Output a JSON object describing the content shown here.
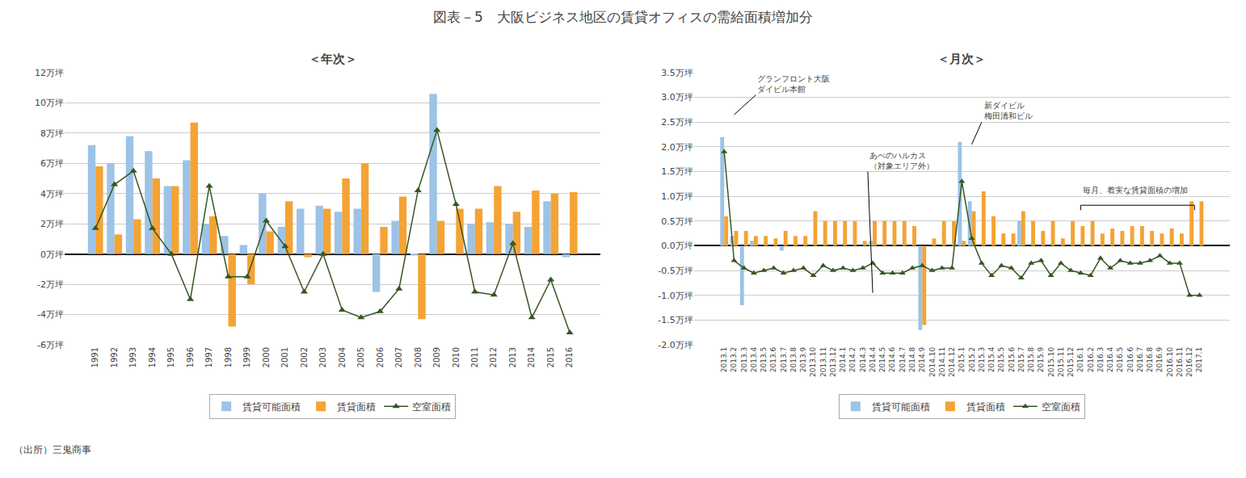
{
  "title": "図表－5　大阪ビジネス地区の賃貸オフィスの需給面積増加分",
  "annotations": [
    "（出所）三鬼商事"
  ],
  "chart_data": [
    {
      "type": "bar",
      "title": "＜年次＞",
      "categories": [
        "1991",
        "1992",
        "1993",
        "1994",
        "1995",
        "1996",
        "1997",
        "1998",
        "1999",
        "2000",
        "2001",
        "2002",
        "2003",
        "2004",
        "2005",
        "2006",
        "2007",
        "2008",
        "2009",
        "2010",
        "2011",
        "2012",
        "2013",
        "2014",
        "2015",
        "2016"
      ],
      "series": [
        {
          "name": "賃貸可能面積",
          "type": "bar",
          "color": "#9DC3E6",
          "values": [
            7.2,
            6.0,
            7.8,
            6.8,
            4.5,
            6.2,
            2.0,
            1.2,
            0.6,
            4.0,
            1.8,
            3.0,
            3.2,
            2.8,
            3.0,
            -2.5,
            2.2,
            -0.1,
            10.6,
            0.0,
            2.0,
            2.1,
            2.0,
            1.8,
            3.5,
            -0.2
          ]
        },
        {
          "name": "賃貸面積",
          "type": "bar",
          "color": "#F4A335",
          "values": [
            5.8,
            1.3,
            2.3,
            5.0,
            4.5,
            8.7,
            2.5,
            -4.8,
            -2.0,
            1.5,
            3.5,
            -0.2,
            3.0,
            5.0,
            6.0,
            1.8,
            3.8,
            -4.3,
            2.2,
            3.0,
            3.0,
            4.5,
            2.8,
            4.2,
            4.0,
            4.1
          ]
        },
        {
          "name": "空室面積",
          "type": "line",
          "color": "#375623",
          "marker": "triangle-up",
          "values": [
            1.7,
            4.6,
            5.5,
            1.7,
            0.0,
            -3.0,
            4.5,
            -1.5,
            -1.5,
            2.2,
            0.5,
            -2.5,
            0.0,
            -3.7,
            -4.2,
            -3.8,
            -2.3,
            4.2,
            8.2,
            3.3,
            -2.5,
            -2.7,
            0.7,
            -4.2,
            -1.7,
            -5.2
          ]
        }
      ],
      "ylim": [
        -6,
        12
      ],
      "yticks": [
        {
          "value": -6,
          "label": "-6万坪"
        },
        {
          "value": -4,
          "label": "-4万坪"
        },
        {
          "value": -2,
          "label": "-2万坪"
        },
        {
          "value": 0,
          "label": "0万坪"
        },
        {
          "value": 2,
          "label": "2万坪"
        },
        {
          "value": 4,
          "label": "4万坪"
        },
        {
          "value": 6,
          "label": "6万坪"
        },
        {
          "value": 8,
          "label": "8万坪"
        },
        {
          "value": 10,
          "label": "10万坪"
        },
        {
          "value": 12,
          "label": "12万坪"
        }
      ],
      "grid": true,
      "legend": "bottom"
    },
    {
      "type": "bar",
      "title": "＜月次＞",
      "categories": [
        "2013.1",
        "2013.2",
        "2013.3",
        "2013.4",
        "2013.5",
        "2013.6",
        "2013.7",
        "2013.8",
        "2013.9",
        "2013.10",
        "2013.11",
        "2013.12",
        "2014.1",
        "2014.2",
        "2014.3",
        "2014.4",
        "2014.5",
        "2014.6",
        "2014.7",
        "2014.8",
        "2014.9",
        "2014.10",
        "2014.11",
        "2014.12",
        "2015.1",
        "2015.2",
        "2015.3",
        "2015.4",
        "2015.5",
        "2015.6",
        "2015.7",
        "2015.8",
        "2015.9",
        "2015.10",
        "2015.11",
        "2015.12",
        "2016.1",
        "2016.2",
        "2016.3",
        "2016.4",
        "2016.5",
        "2016.6",
        "2016.7",
        "2016.8",
        "2016.9",
        "2016.10",
        "2016.11",
        "2016.12",
        "2017.1"
      ],
      "series": [
        {
          "name": "賃貸可能面積",
          "type": "bar",
          "color": "#9DC3E6",
          "values": [
            2.2,
            0.2,
            -1.2,
            0.1,
            0.0,
            0.0,
            -0.1,
            0.0,
            0.0,
            0.0,
            0.0,
            0.0,
            0.0,
            0.0,
            0.0,
            0.1,
            0.0,
            0.0,
            0.0,
            0.0,
            -1.7,
            0.0,
            0.0,
            0.0,
            2.1,
            0.9,
            0.0,
            0.0,
            0.0,
            0.0,
            0.5,
            0.0,
            0.0,
            0.0,
            0.0,
            0.0,
            0.0,
            0.0,
            0.0,
            0.0,
            0.0,
            0.0,
            0.0,
            0.0,
            0.0,
            0.0,
            0.0,
            0.0,
            0.0
          ]
        },
        {
          "name": "賃貸面積",
          "type": "bar",
          "color": "#F4A335",
          "values": [
            0.6,
            0.3,
            0.3,
            0.2,
            0.2,
            0.15,
            0.3,
            0.2,
            0.2,
            0.7,
            0.5,
            0.5,
            0.5,
            0.5,
            0.1,
            0.5,
            0.5,
            0.5,
            0.5,
            0.4,
            -1.6,
            0.15,
            0.5,
            0.5,
            0.1,
            0.7,
            1.1,
            0.6,
            0.25,
            0.25,
            0.7,
            0.5,
            0.3,
            0.5,
            0.15,
            0.5,
            0.4,
            0.5,
            0.25,
            0.35,
            0.3,
            0.4,
            0.4,
            0.3,
            0.25,
            0.35,
            0.25,
            0.9,
            0.9
          ]
        },
        {
          "name": "空室面積",
          "type": "line",
          "color": "#375623",
          "marker": "triangle-up",
          "values": [
            1.9,
            -0.3,
            -0.45,
            -0.55,
            -0.5,
            -0.45,
            -0.55,
            -0.5,
            -0.45,
            -0.6,
            -0.4,
            -0.5,
            -0.45,
            -0.5,
            -0.45,
            -0.35,
            -0.55,
            -0.55,
            -0.55,
            -0.45,
            -0.4,
            -0.5,
            -0.45,
            -0.45,
            1.3,
            0.15,
            -0.35,
            -0.6,
            -0.4,
            -0.45,
            -0.65,
            -0.35,
            -0.3,
            -0.6,
            -0.35,
            -0.5,
            -0.55,
            -0.6,
            -0.25,
            -0.45,
            -0.3,
            -0.35,
            -0.35,
            -0.3,
            -0.2,
            -0.35,
            -0.35,
            -1.0,
            -1.0
          ]
        }
      ],
      "ylim": [
        -2.0,
        3.5
      ],
      "yticks": [
        {
          "value": -2.0,
          "label": "-2.0万坪"
        },
        {
          "value": -1.5,
          "label": "-1.5万坪"
        },
        {
          "value": -1.0,
          "label": "-1.0万坪"
        },
        {
          "value": -0.5,
          "label": "-0.5万坪"
        },
        {
          "value": 0.0,
          "label": "0.0万坪"
        },
        {
          "value": 0.5,
          "label": "0.5万坪"
        },
        {
          "value": 1.0,
          "label": "1.0万坪"
        },
        {
          "value": 1.5,
          "label": "1.5万坪"
        },
        {
          "value": 2.0,
          "label": "2.0万坪"
        },
        {
          "value": 2.5,
          "label": "2.5万坪"
        },
        {
          "value": 3.0,
          "label": "3.0万坪"
        },
        {
          "value": 3.5,
          "label": "3.5万坪"
        }
      ],
      "grid": true,
      "legend": "bottom",
      "annotations": [
        "グランフロント大阪\nダイビル本館",
        "あべのハルカス\n（対象エリア外）",
        "新ダイビル\n梅田清和ビル",
        "毎月、着実な賃貸面積の増加"
      ]
    }
  ]
}
